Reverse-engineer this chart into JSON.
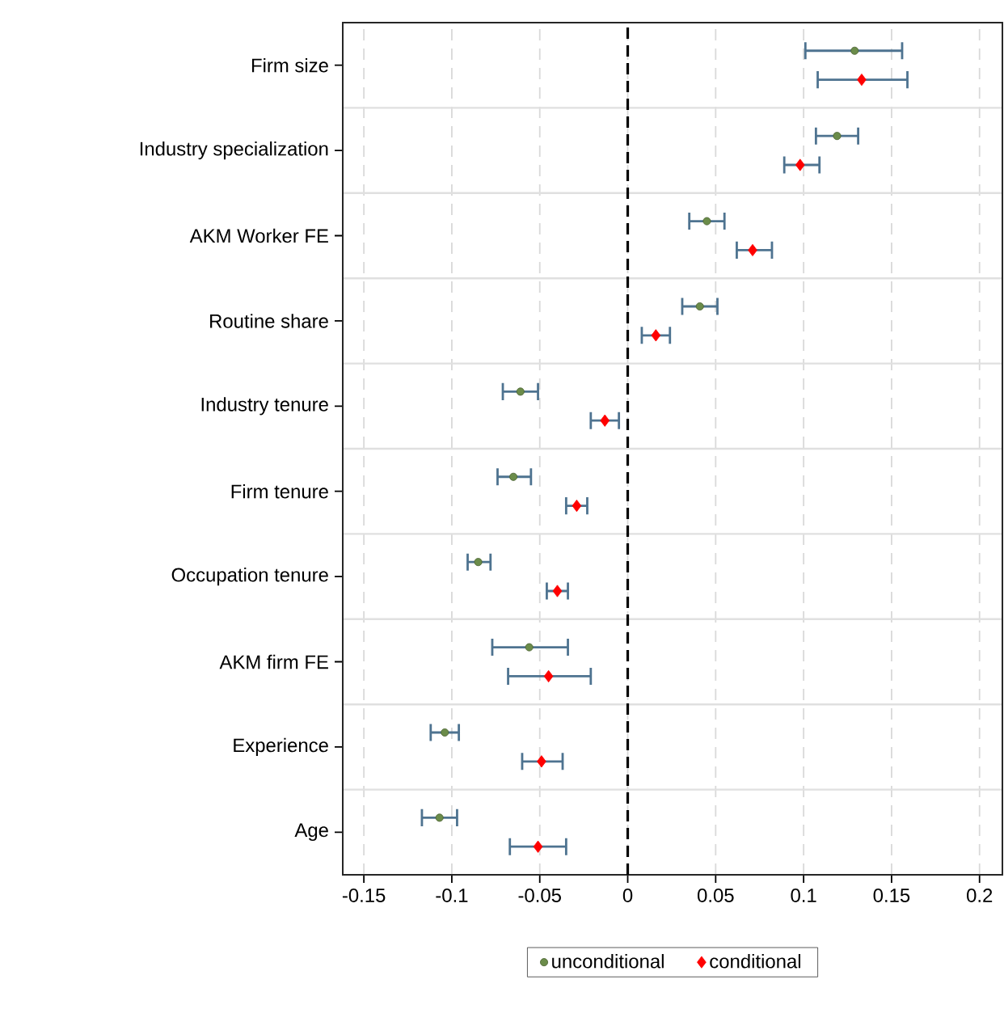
{
  "chart_data": {
    "type": "scatter",
    "orientation": "horizontal",
    "categories": [
      "Firm size",
      "Industry specialization",
      "AKM Worker FE",
      "Routine share",
      "Industry tenure",
      "Firm tenure",
      "Occupation tenure",
      "AKM firm FE",
      "Experience",
      "Age"
    ],
    "series": [
      {
        "name": "unconditional",
        "color": "#6b8c4a",
        "marker": "circle",
        "values": [
          0.129,
          0.119,
          0.045,
          0.041,
          -0.061,
          -0.065,
          -0.085,
          -0.056,
          -0.104,
          -0.107
        ],
        "errors": [
          [
            0.101,
            0.156
          ],
          [
            0.107,
            0.131
          ],
          [
            0.035,
            0.055
          ],
          [
            0.031,
            0.051
          ],
          [
            -0.071,
            -0.051
          ],
          [
            -0.074,
            -0.055
          ],
          [
            -0.091,
            -0.078
          ],
          [
            -0.077,
            -0.034
          ],
          [
            -0.112,
            -0.096
          ],
          [
            -0.117,
            -0.097
          ]
        ]
      },
      {
        "name": "conditional",
        "color": "#ff0000",
        "marker": "diamond",
        "values": [
          0.133,
          0.098,
          0.071,
          0.016,
          -0.013,
          -0.029,
          -0.04,
          -0.045,
          -0.049,
          -0.051
        ],
        "errors": [
          [
            0.108,
            0.159
          ],
          [
            0.089,
            0.109
          ],
          [
            0.062,
            0.082
          ],
          [
            0.008,
            0.024
          ],
          [
            -0.021,
            -0.005
          ],
          [
            -0.035,
            -0.023
          ],
          [
            -0.046,
            -0.034
          ],
          [
            -0.068,
            -0.021
          ],
          [
            -0.06,
            -0.037
          ],
          [
            -0.067,
            -0.035
          ]
        ]
      }
    ],
    "xlim": [
      -0.162,
      0.213
    ],
    "xticks": [
      -0.15,
      -0.1,
      -0.05,
      0,
      0.05,
      0.1,
      0.15,
      0.2
    ],
    "grid": "x",
    "ref_lines": [
      {
        "axis": "x",
        "value": 0,
        "color": "#000000",
        "line_style": "dashed"
      }
    ],
    "legend": "bottom"
  }
}
